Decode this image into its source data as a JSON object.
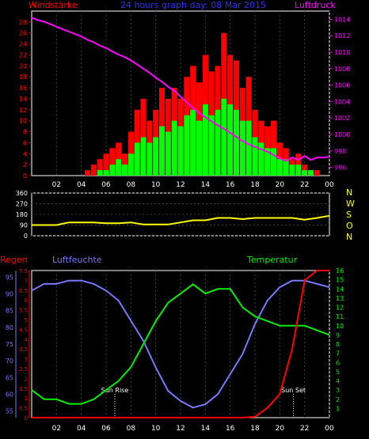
{
  "header": {
    "left_label": "Windstärke",
    "center_title": "24 hours graph day: 08 Mar 2015",
    "right_label": "Luftdruck"
  },
  "colors": {
    "background": "#000000",
    "axis": "#ffffff",
    "grid": "#404040",
    "wind_gust": "#ff0000",
    "wind_avg": "#00ff00",
    "pressure": "#ff00ff",
    "direction": "#ffff00",
    "rain": "#ff0000",
    "humidity": "#7878ff",
    "temperature": "#00ee00",
    "left_axis_red": "#ff0000",
    "right_axis_mag": "#ff00ff",
    "title_blue": "#3030ff"
  },
  "chart_data": [
    {
      "id": "wind-pressure",
      "type": "bar",
      "title": "24 hours graph day: 08 Mar 2015",
      "left_axis": {
        "label": "Windstärke",
        "ylim": [
          0,
          30
        ],
        "ticks": [
          0,
          2,
          4,
          6,
          8,
          10,
          12,
          14,
          16,
          18,
          20,
          22,
          24,
          26,
          28
        ]
      },
      "right_axis": {
        "label": "Luftdruck",
        "ylim": [
          995,
          1015
        ],
        "ticks": [
          996,
          998,
          1000,
          1002,
          1004,
          1006,
          1008,
          1010,
          1012,
          1014
        ]
      },
      "x_ticks": [
        "02",
        "04",
        "06",
        "08",
        "10",
        "12",
        "14",
        "16",
        "18",
        "20",
        "22",
        "00"
      ],
      "x": [
        0,
        0.5,
        1,
        1.5,
        2,
        2.5,
        3,
        3.5,
        4,
        4.5,
        5,
        5.5,
        6,
        6.5,
        7,
        7.5,
        8,
        8.5,
        9,
        9.5,
        10,
        10.5,
        11,
        11.5,
        12,
        12.5,
        13,
        13.5,
        14,
        14.5,
        15,
        15.5,
        16,
        16.5,
        17,
        17.5,
        18,
        18.5,
        19,
        19.5,
        20,
        20.5,
        21,
        21.5,
        22,
        22.5,
        23,
        23.5,
        24
      ],
      "series": [
        {
          "name": "gust",
          "values": [
            0,
            0,
            0,
            0,
            0,
            0,
            0,
            0,
            0,
            1,
            2,
            3,
            4,
            5,
            6,
            4,
            8,
            12,
            14,
            10,
            12,
            16,
            14,
            16,
            14,
            18,
            20,
            17,
            22,
            19,
            20,
            26,
            22,
            21,
            16,
            18,
            12,
            10,
            9,
            10,
            6,
            5,
            3,
            4,
            2,
            1,
            1,
            0,
            0
          ]
        },
        {
          "name": "average",
          "values": [
            0,
            0,
            0,
            0,
            0,
            0,
            0,
            0,
            0,
            0,
            0,
            1,
            1,
            2,
            3,
            2,
            4,
            6,
            7,
            6,
            7,
            9,
            8,
            10,
            9,
            11,
            12,
            10,
            13,
            11,
            12,
            14,
            13,
            12,
            10,
            10,
            7,
            6,
            5,
            5,
            3,
            3,
            2,
            2,
            1,
            1,
            0,
            0,
            0
          ]
        },
        {
          "name": "pressure",
          "values": [
            1014.2,
            1013.9,
            1013.7,
            1013.4,
            1013.1,
            1012.8,
            1012.5,
            1012.2,
            1011.9,
            1011.5,
            1011.2,
            1010.8,
            1010.5,
            1010.1,
            1009.7,
            1009.4,
            1009.0,
            1008.5,
            1008.0,
            1007.5,
            1006.9,
            1006.4,
            1005.8,
            1005.3,
            1004.6,
            1003.9,
            1003.2,
            1002.6,
            1002.1,
            1001.6,
            1001.1,
            1000.7,
            1000.2,
            999.7,
            999.2,
            998.8,
            998.5,
            998.2,
            997.9,
            997.5,
            997.1,
            996.8,
            997.2,
            996.9,
            997.4,
            996.9,
            997.2,
            997.2,
            997.3
          ]
        }
      ]
    },
    {
      "id": "direction",
      "type": "line",
      "left_axis": {
        "ylim": [
          0,
          360
        ],
        "ticks": [
          0,
          90,
          180,
          270,
          360
        ]
      },
      "right_labels": [
        "N",
        "W",
        "S",
        "O",
        "N"
      ],
      "x": [
        0,
        1,
        2,
        3,
        4,
        5,
        6,
        7,
        8,
        9,
        10,
        11,
        12,
        13,
        14,
        15,
        16,
        17,
        18,
        19,
        20,
        21,
        22,
        23,
        24
      ],
      "series": [
        {
          "name": "direction",
          "values": [
            90,
            90,
            90,
            112,
            112,
            112,
            105,
            105,
            112,
            95,
            95,
            95,
            112,
            130,
            130,
            150,
            150,
            140,
            150,
            150,
            150,
            150,
            135,
            150,
            168
          ]
        }
      ]
    },
    {
      "id": "rain-humidity-temp",
      "type": "line",
      "labels": {
        "rain": "Regen",
        "humidity": "Luftfeuchte",
        "temperature": "Temperatur"
      },
      "rain_axis": {
        "ylim": [
          0,
          7.5
        ],
        "ticks": [
          "0",
          "0.5",
          "1",
          "1.5",
          "2",
          "2.5",
          "3",
          "3.5",
          "4",
          "4.5",
          "5",
          "5.5",
          "6",
          "6.5",
          "7",
          "7.5"
        ]
      },
      "humidity_axis": {
        "ylim": [
          53,
          97
        ],
        "ticks": [
          55,
          60,
          65,
          70,
          75,
          80,
          85,
          90,
          95
        ]
      },
      "temp_axis": {
        "ylim": [
          0,
          16
        ],
        "ticks": [
          1,
          2,
          3,
          4,
          5,
          6,
          7,
          8,
          9,
          10,
          11,
          12,
          13,
          14,
          15,
          16
        ]
      },
      "x_ticks": [
        "02",
        "04",
        "06",
        "08",
        "10",
        "12",
        "14",
        "16",
        "18",
        "20",
        "22",
        "00"
      ],
      "annotations": [
        {
          "label": "Sun Rise",
          "x": 6.7
        },
        {
          "label": "Sun Set",
          "x": 21.1
        }
      ],
      "x": [
        0,
        1,
        2,
        3,
        4,
        5,
        6,
        7,
        8,
        9,
        10,
        11,
        12,
        13,
        14,
        15,
        16,
        17,
        18,
        19,
        20,
        21,
        22,
        23,
        24
      ],
      "series": [
        {
          "name": "rain",
          "values": [
            0,
            0,
            0,
            0,
            0,
            0,
            0,
            0,
            0,
            0,
            0,
            0,
            0,
            0,
            0,
            0,
            0,
            0,
            0.05,
            0.5,
            1.2,
            3.5,
            7.0,
            7.5,
            7.5
          ]
        },
        {
          "name": "humidity",
          "values": [
            91,
            93,
            93,
            94,
            94,
            93,
            91,
            88,
            82,
            76,
            68,
            61,
            58,
            56,
            57,
            60,
            66,
            72,
            81,
            88,
            92,
            94,
            94,
            93,
            92
          ]
        },
        {
          "name": "temperature",
          "values": [
            3,
            2,
            2,
            1.5,
            1.5,
            2,
            3,
            4,
            5.5,
            8,
            10.5,
            12.5,
            13.5,
            14.5,
            13.5,
            14,
            14,
            12,
            11,
            10.5,
            10,
            10,
            10,
            9.5,
            9
          ]
        }
      ]
    }
  ]
}
